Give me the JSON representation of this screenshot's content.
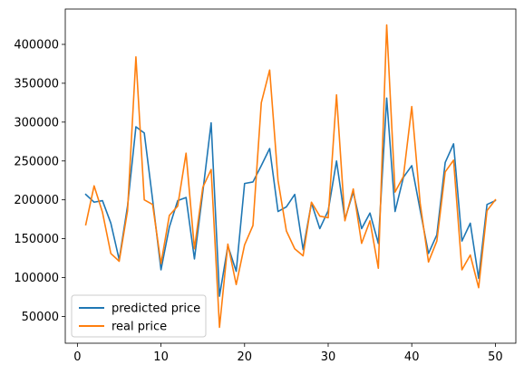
{
  "chart_data": {
    "type": "line",
    "x": [
      1,
      2,
      3,
      4,
      5,
      6,
      7,
      8,
      9,
      10,
      11,
      12,
      13,
      14,
      15,
      16,
      17,
      18,
      19,
      20,
      21,
      22,
      23,
      24,
      25,
      26,
      27,
      28,
      29,
      30,
      31,
      32,
      33,
      34,
      35,
      36,
      37,
      38,
      39,
      40,
      41,
      42,
      43,
      44,
      45,
      46,
      47,
      48,
      49,
      50
    ],
    "series": [
      {
        "name": "predicted price",
        "color": "#1f77b4",
        "values": [
          207000,
          197000,
          199000,
          170000,
          123000,
          192000,
          294000,
          286000,
          200000,
          110000,
          165000,
          199000,
          203000,
          124000,
          210000,
          299000,
          76000,
          141000,
          108000,
          221000,
          223000,
          244000,
          266000,
          185000,
          191000,
          207000,
          136000,
          196000,
          163000,
          186000,
          250000,
          175000,
          210000,
          163000,
          183000,
          144000,
          331000,
          185000,
          229000,
          244000,
          187000,
          131000,
          155000,
          248000,
          272000,
          147000,
          170000,
          99000,
          194000,
          199000
        ]
      },
      {
        "name": "real price",
        "color": "#ff7f0e",
        "values": [
          168000,
          218000,
          184000,
          131000,
          121000,
          186000,
          384000,
          200000,
          194000,
          118000,
          180000,
          192000,
          260000,
          137000,
          216000,
          239000,
          36000,
          143000,
          91000,
          142000,
          167000,
          325000,
          367000,
          225000,
          160000,
          137000,
          128000,
          197000,
          179000,
          177000,
          335000,
          173000,
          214000,
          144000,
          173000,
          112000,
          425000,
          210000,
          230000,
          320000,
          196000,
          120000,
          147000,
          236000,
          251000,
          110000,
          129000,
          87000,
          186000,
          200000
        ]
      }
    ],
    "xticks": [
      0,
      10,
      20,
      30,
      40,
      50
    ],
    "yticks": [
      50000,
      100000,
      150000,
      200000,
      250000,
      300000,
      350000,
      400000
    ],
    "xlim": [
      -1.45,
      52.45
    ],
    "ylim": [
      15550,
      445450
    ],
    "grid": false,
    "legend_position": "lower-left"
  }
}
